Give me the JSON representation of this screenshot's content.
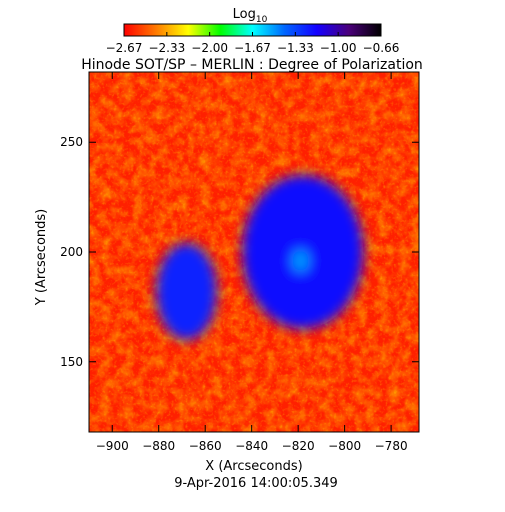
{
  "chart_data": {
    "type": "heatmap",
    "title": "Hinode SOT/SP – MERLIN : Degree of Polarization",
    "colorbar": {
      "label_base": "Log",
      "label_subscript": "10",
      "tick_labels": [
        "−2.67",
        "−2.33",
        "−2.00",
        "−1.67",
        "−1.33",
        "−1.00",
        "−0.66"
      ],
      "range": [
        -2.67,
        -0.66
      ],
      "colors": [
        "#ff0000",
        "#ff7a00",
        "#ffff00",
        "#00ff00",
        "#00ffff",
        "#0066ff",
        "#1400ff",
        "#4a007a",
        "#000000"
      ]
    },
    "xlabel": "X (Arcseconds)",
    "ylabel": "Y (Arcseconds)",
    "xlim": [
      -910,
      -768
    ],
    "ylim": [
      118,
      282
    ],
    "x_ticks": [
      -900,
      -880,
      -860,
      -840,
      -820,
      -800,
      -780
    ],
    "y_ticks": [
      150,
      200,
      250
    ],
    "x_tick_labels": [
      "−900",
      "−880",
      "−860",
      "−840",
      "−820",
      "−800",
      "−780"
    ],
    "y_tick_labels": [
      "150",
      "200",
      "250"
    ],
    "features": [
      {
        "name": "sunspot umbra",
        "x": -816,
        "y": 196,
        "rx": 13,
        "ry": 17,
        "level": -0.75
      },
      {
        "name": "sunspot penumbra",
        "x": -818,
        "y": 200,
        "rx": 26,
        "ry": 35,
        "level": -1.2
      },
      {
        "name": "umbral bright spot",
        "x": -819,
        "y": 196,
        "rx": 3.5,
        "ry": 5,
        "level": -1.5
      },
      {
        "name": "pore cluster",
        "x": -868,
        "y": 182,
        "rx": 13,
        "ry": 22,
        "level": -1.25
      }
    ]
  },
  "footer": {
    "timestamp": "9-Apr-2016 14:00:05.349"
  }
}
